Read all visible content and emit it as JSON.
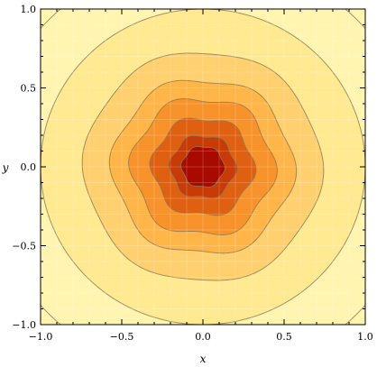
{
  "chart_data": {
    "type": "contour",
    "title": "",
    "xlabel": "x",
    "ylabel": "y",
    "xlim": [
      -1.0,
      1.0
    ],
    "ylim": [
      -1.0,
      1.0
    ],
    "xticks": [
      {
        "value": -1.0,
        "label": "−1.0"
      },
      {
        "value": -0.5,
        "label": "−0.5"
      },
      {
        "value": 0.0,
        "label": "0.0"
      },
      {
        "value": 0.5,
        "label": "0.5"
      },
      {
        "value": 1.0,
        "label": "1.0"
      }
    ],
    "yticks": [
      {
        "value": -1.0,
        "label": "−1.0"
      },
      {
        "value": -0.5,
        "label": "−0.5"
      },
      {
        "value": 0.0,
        "label": "0.0"
      },
      {
        "value": 0.5,
        "label": "0.5"
      },
      {
        "value": 1.0,
        "label": "1.0"
      }
    ],
    "grid": true,
    "function_shape": "star-shaped radial field with 6-fold angular modulation, maximum at origin",
    "contour_levels": [
      {
        "level": 1,
        "radius": 1.33,
        "amplitude": 0.0,
        "color": "#fff5b0"
      },
      {
        "level": 2,
        "radius": 1.0,
        "amplitude": 0.0,
        "color": "#ffe991"
      },
      {
        "level": 3,
        "radius": 0.73,
        "amplitude": 0.02,
        "color": "#ffd070"
      },
      {
        "level": 4,
        "radius": 0.555,
        "amplitude": 0.04,
        "color": "#ffb548"
      },
      {
        "level": 5,
        "radius": 0.435,
        "amplitude": 0.055,
        "color": "#f8922a"
      },
      {
        "level": 6,
        "radius": 0.31,
        "amplitude": 0.06,
        "color": "#e06012"
      },
      {
        "level": 7,
        "radius": 0.2,
        "amplitude": 0.06,
        "color": "#c83a06"
      },
      {
        "level": 8,
        "radius": 0.13,
        "amplitude": 0.05,
        "color": "#a80a00"
      }
    ],
    "colors": {
      "background": "#fff5b0",
      "contour_line": "#8a7a55"
    }
  }
}
